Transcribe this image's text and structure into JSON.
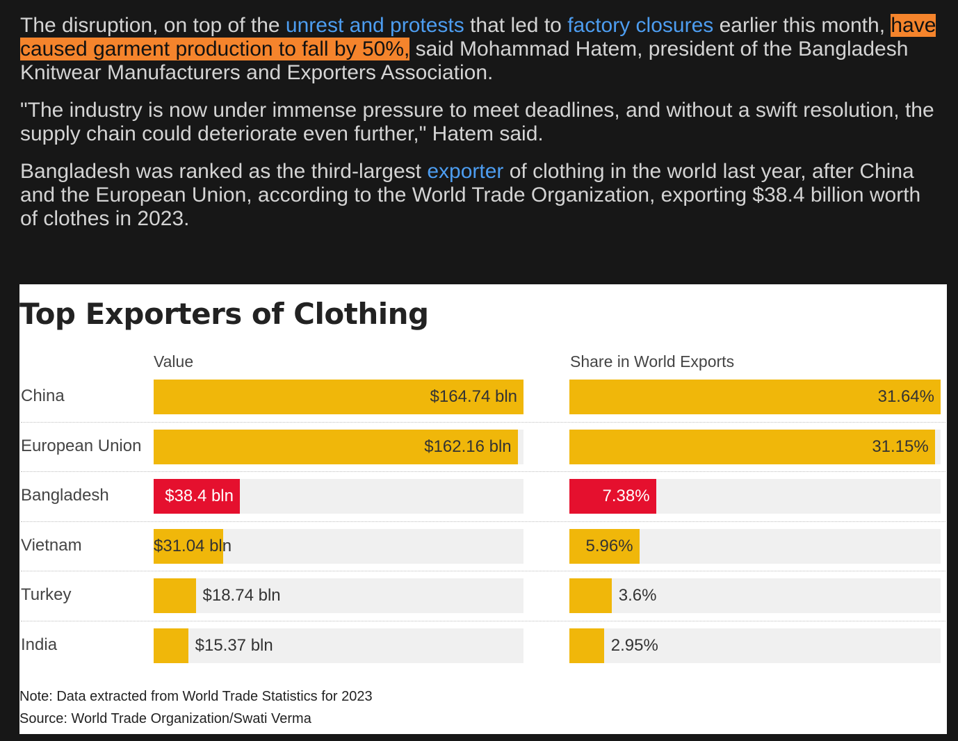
{
  "article": {
    "p1": {
      "t1": "The disruption, on top of the ",
      "link1": "unrest and protests",
      "t2": " that led to ",
      "link2": "factory closures",
      "t3": " earlier this month, ",
      "highlight": "have caused garment production to fall by 50%,",
      "t4": " said Mohammad Hatem, president of the Bangladesh Knitwear Manufacturers and Exporters Association."
    },
    "p2": "\"The industry is now under immense pressure to meet deadlines, and without a swift resolution, the supply chain could deteriorate even further,\" Hatem said.",
    "p3": {
      "t1": "Bangladesh was ranked as the third-largest ",
      "link": "exporter",
      "t2": " of clothing in the world last year, after China and the European Union, according to the World Trade Organization, exporting $38.4 billion worth of clothes in 2023."
    }
  },
  "colors": {
    "bar": "#f0b70a",
    "highlight_bar": "#e5102e",
    "track": "#f0f0f0",
    "text_highlight": "#f5842c",
    "link": "#4d9df0"
  },
  "chart_data": {
    "type": "bar",
    "title": "Top Exporters of Clothing",
    "categories": [
      "China",
      "European Union",
      "Bangladesh",
      "Vietnam",
      "Turkey",
      "India"
    ],
    "highlight_category": "Bangladesh",
    "series": [
      {
        "name": "Value",
        "values": [
          164.74,
          162.16,
          38.4,
          31.04,
          18.74,
          15.37
        ],
        "labels": [
          "$164.74 bln",
          "$162.16 bln",
          "$38.4 bln",
          "$31.04 bln",
          "$18.74 bln",
          "$15.37 bln"
        ],
        "xlim": [
          0,
          164.74
        ]
      },
      {
        "name": "Share in World Exports",
        "values": [
          31.64,
          31.15,
          7.38,
          5.96,
          3.6,
          2.95
        ],
        "labels": [
          "31.64%",
          "31.15%",
          "7.38%",
          "5.96%",
          "3.6%",
          "2.95%"
        ],
        "xlim": [
          0,
          31.64
        ]
      }
    ],
    "note": "Note: Data extracted from World Trade Statistics for 2023",
    "source": "Source: World Trade Organization/Swati Verma"
  }
}
